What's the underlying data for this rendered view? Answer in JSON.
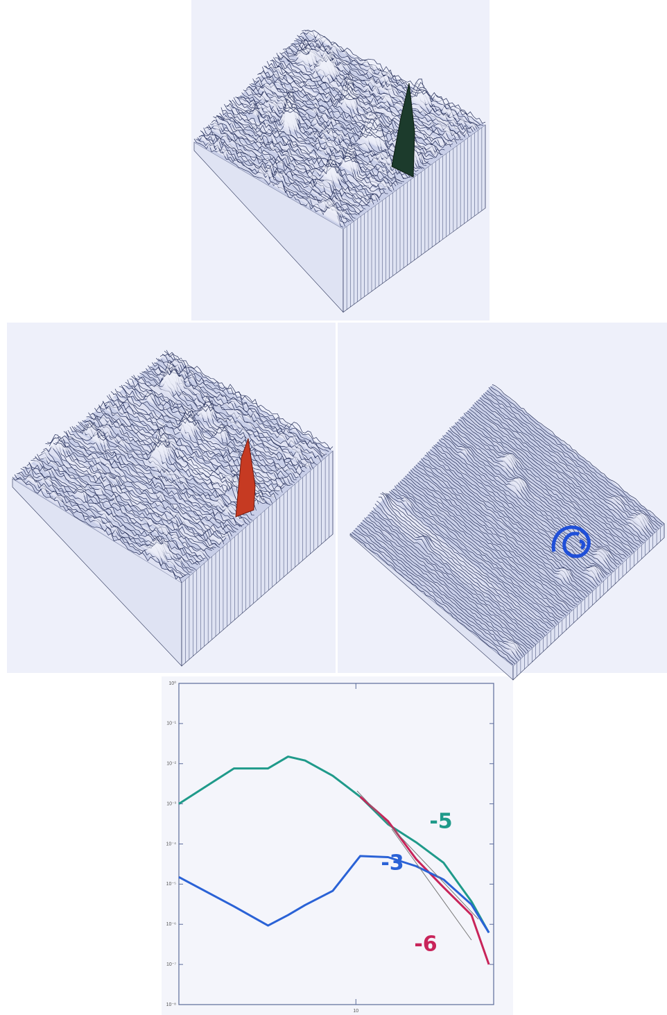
{
  "chart_data": {
    "type": "line",
    "log_x": true,
    "log_y": true,
    "xlim": [
      2,
      35
    ],
    "ylim": [
      1e-08,
      1
    ],
    "xticks": [
      {
        "value": 10,
        "label": "10"
      }
    ],
    "yticks": [
      {
        "value": 1,
        "label": "10⁰"
      },
      {
        "value": 0.1,
        "label": "10⁻¹"
      },
      {
        "value": 0.01,
        "label": "10⁻²"
      },
      {
        "value": 0.001,
        "label": "10⁻³"
      },
      {
        "value": 0.0001,
        "label": "10⁻⁴"
      },
      {
        "value": 1e-05,
        "label": "10⁻⁵"
      },
      {
        "value": 1e-06,
        "label": "10⁻⁶"
      },
      {
        "value": 1e-07,
        "label": "10⁻⁷"
      },
      {
        "value": 1e-08,
        "label": "10⁻⁸"
      }
    ],
    "x": [
      2,
      3.3,
      4.5,
      5.4,
      6.3,
      8.1,
      10.4,
      13.4,
      17.3,
      22.2,
      28.6,
      33.5
    ],
    "series": [
      {
        "color": "#1f9a8a",
        "values": [
          0.001,
          0.0076,
          0.0076,
          0.015,
          0.012,
          0.005,
          0.0015,
          0.00031,
          0.00011,
          3.4e-05,
          3.7e-06,
          6.2e-07
        ]
      },
      {
        "color": "#c8245a",
        "values": [
          null,
          null,
          null,
          null,
          null,
          null,
          0.0015,
          0.00037,
          4.2e-05,
          8.3e-06,
          1.7e-06,
          1e-07
        ]
      },
      {
        "color": "#2a62d6",
        "values": [
          1.5e-05,
          2.8e-06,
          9.3e-07,
          1.7e-06,
          3e-06,
          6.8e-06,
          5e-05,
          4.7e-05,
          2.8e-05,
          1.3e-05,
          3.1e-06,
          6.2e-07
        ]
      }
    ],
    "annotations": [
      {
        "text": "-5",
        "color": "#1f9a8a"
      },
      {
        "text": "-3",
        "color": "#2a62d6"
      },
      {
        "text": "-6",
        "color": "#c8245a"
      }
    ]
  }
}
